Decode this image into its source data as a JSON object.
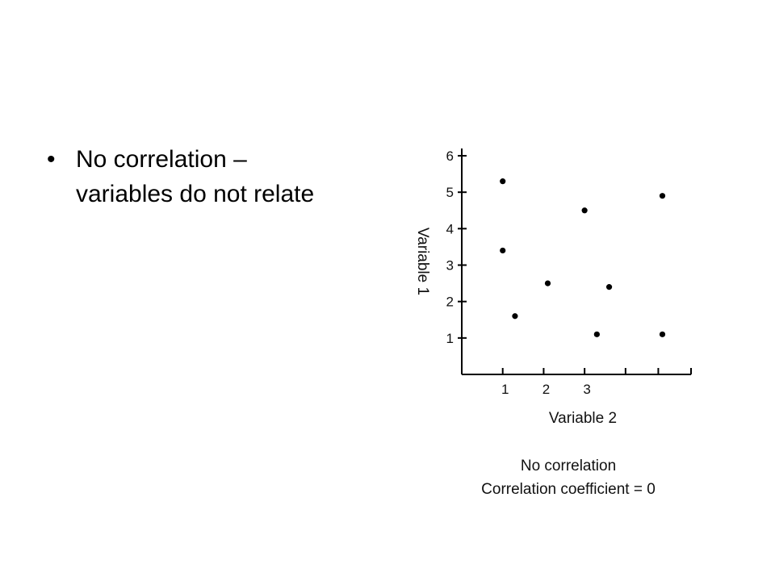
{
  "slide": {
    "bullet_glyph": "•",
    "bullet_line1": "No correlation –",
    "bullet_line2": "variables do not relate"
  },
  "chart_data": {
    "type": "scatter",
    "xlabel": "Variable 2",
    "ylabel": "Variable 1",
    "xlim": [
      0,
      5.6
    ],
    "ylim": [
      0,
      6.2
    ],
    "x_tick_values": [
      1,
      2,
      3,
      4,
      4.8,
      5.6
    ],
    "x_tick_labels": [
      "1",
      "2",
      "3"
    ],
    "y_ticks": [
      1,
      2,
      3,
      4,
      5,
      6
    ],
    "points": [
      {
        "x": 1.0,
        "y": 5.3
      },
      {
        "x": 1.0,
        "y": 3.4
      },
      {
        "x": 1.3,
        "y": 1.6
      },
      {
        "x": 2.1,
        "y": 2.5
      },
      {
        "x": 3.0,
        "y": 4.5
      },
      {
        "x": 3.3,
        "y": 1.1
      },
      {
        "x": 3.6,
        "y": 2.4
      },
      {
        "x": 4.9,
        "y": 4.9
      },
      {
        "x": 4.9,
        "y": 1.1
      }
    ],
    "caption_line1": "No correlation",
    "caption_line2": "Correlation coefficient = 0",
    "grid": false
  }
}
